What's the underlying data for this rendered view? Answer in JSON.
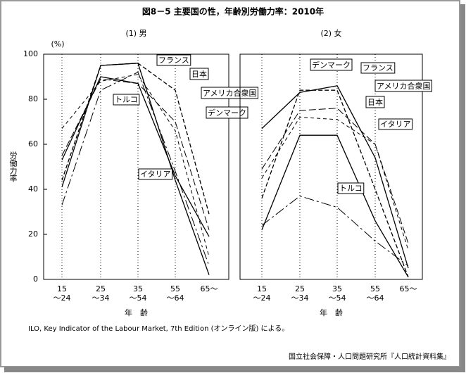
{
  "title": "図8－5 主要国の性，年齢別労働力率：2010年",
  "y_label": "労働力率",
  "y_unit": "(%)",
  "source_note": "ILO, Key Indicator of the Labour Market, 7th Edition (オンライン版) による。",
  "publisher": "国立社会保障・人口問題研究所『人口統計資料集』",
  "chart_data": [
    {
      "type": "line",
      "title": "(1) 男",
      "x_label": "年　齢",
      "categories": [
        [
          "15",
          "～24"
        ],
        [
          "25",
          "～34"
        ],
        [
          "35",
          "～54"
        ],
        [
          "55",
          "～64"
        ],
        [
          "65～"
        ]
      ],
      "ylim": [
        0,
        100
      ],
      "yticks": [
        0,
        20,
        40,
        60,
        80,
        100
      ],
      "grid": true,
      "series": [
        {
          "name": "フランス",
          "color": "#000000",
          "values": [
            41,
            95,
            96,
            44,
            2
          ]
        },
        {
          "name": "日本",
          "color": "#000000",
          "values": [
            44,
            95,
            96,
            84,
            29
          ]
        },
        {
          "name": "アメリカ合衆国",
          "color": "#000000",
          "values": [
            55,
            89,
            87,
            70,
            22
          ]
        },
        {
          "name": "デンマーク",
          "color": "#000000",
          "values": [
            67,
            88,
            91,
            66,
            10
          ]
        },
        {
          "name": "トルコ",
          "color": "#000000",
          "values": [
            53,
            90,
            87,
            46,
            19
          ]
        },
        {
          "name": "イタリア",
          "color": "#000000",
          "values": [
            33,
            84,
            92,
            48,
            6
          ]
        }
      ]
    },
    {
      "type": "line",
      "title": "(2) 女",
      "x_label": "年　齢",
      "categories": [
        [
          "15",
          "～24"
        ],
        [
          "25",
          "～34"
        ],
        [
          "35",
          "～54"
        ],
        [
          "55",
          "～64"
        ],
        [
          "65～"
        ]
      ],
      "ylim": [
        0,
        100
      ],
      "grid": true,
      "series": [
        {
          "name": "デンマーク",
          "color": "#000000",
          "values": [
            67,
            83,
            86,
            54,
            5
          ]
        },
        {
          "name": "フランス",
          "color": "#000000",
          "values": [
            36,
            84,
            84,
            40,
            1
          ]
        },
        {
          "name": "アメリカ合衆国",
          "color": "#000000",
          "values": [
            49,
            75,
            76,
            60,
            16
          ]
        },
        {
          "name": "日本",
          "color": "#000000",
          "values": [
            45,
            72,
            71,
            60,
            13
          ]
        },
        {
          "name": "イタリア",
          "color": "#000000",
          "values": [
            22,
            64,
            64,
            26,
            1
          ]
        },
        {
          "name": "トルコ",
          "color": "#000000",
          "values": [
            24,
            37,
            32,
            17,
            6
          ]
        }
      ]
    }
  ]
}
